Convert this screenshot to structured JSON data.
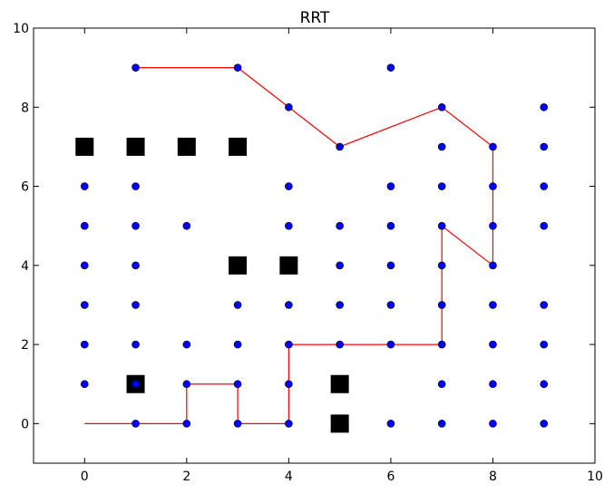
{
  "chart_data": {
    "type": "scatter",
    "title": "RRT",
    "xlabel": "",
    "ylabel": "",
    "xlim": [
      -1,
      10
    ],
    "ylim": [
      -1,
      10
    ],
    "xticks": [
      0,
      2,
      4,
      6,
      8,
      10
    ],
    "yticks": [
      0,
      2,
      4,
      6,
      8,
      10
    ],
    "xtick_labels": [
      "0",
      "2",
      "4",
      "6",
      "8",
      "10"
    ],
    "ytick_labels": [
      "0",
      "2",
      "4",
      "6",
      "8",
      "10"
    ],
    "grid": false,
    "colors": {
      "nodes": "#0000ff",
      "path": "#ff0000",
      "obstacles": "#000000"
    },
    "obstacles": [
      [
        0,
        7
      ],
      [
        1,
        7
      ],
      [
        2,
        7
      ],
      [
        3,
        7
      ],
      [
        3,
        4
      ],
      [
        4,
        4
      ],
      [
        1,
        1
      ],
      [
        5,
        1
      ],
      [
        5,
        0
      ]
    ],
    "nodes": [
      [
        1,
        9
      ],
      [
        3,
        9
      ],
      [
        6,
        9
      ],
      [
        4,
        8
      ],
      [
        7,
        8
      ],
      [
        9,
        8
      ],
      [
        5,
        7
      ],
      [
        7,
        7
      ],
      [
        8,
        7
      ],
      [
        9,
        7
      ],
      [
        0,
        6
      ],
      [
        1,
        6
      ],
      [
        4,
        6
      ],
      [
        6,
        6
      ],
      [
        7,
        6
      ],
      [
        8,
        6
      ],
      [
        9,
        6
      ],
      [
        0,
        5
      ],
      [
        1,
        5
      ],
      [
        2,
        5
      ],
      [
        4,
        5
      ],
      [
        5,
        5
      ],
      [
        6,
        5
      ],
      [
        7,
        5
      ],
      [
        8,
        5
      ],
      [
        9,
        5
      ],
      [
        0,
        4
      ],
      [
        1,
        4
      ],
      [
        5,
        4
      ],
      [
        6,
        4
      ],
      [
        7,
        4
      ],
      [
        8,
        4
      ],
      [
        0,
        3
      ],
      [
        1,
        3
      ],
      [
        3,
        3
      ],
      [
        4,
        3
      ],
      [
        5,
        3
      ],
      [
        6,
        3
      ],
      [
        7,
        3
      ],
      [
        8,
        3
      ],
      [
        9,
        3
      ],
      [
        0,
        2
      ],
      [
        1,
        2
      ],
      [
        2,
        2
      ],
      [
        3,
        2
      ],
      [
        4,
        2
      ],
      [
        5,
        2
      ],
      [
        6,
        2
      ],
      [
        7,
        2
      ],
      [
        8,
        2
      ],
      [
        9,
        2
      ],
      [
        0,
        1
      ],
      [
        1,
        1
      ],
      [
        2,
        1
      ],
      [
        3,
        1
      ],
      [
        4,
        1
      ],
      [
        7,
        1
      ],
      [
        8,
        1
      ],
      [
        9,
        1
      ],
      [
        1,
        0
      ],
      [
        2,
        0
      ],
      [
        3,
        0
      ],
      [
        4,
        0
      ],
      [
        6,
        0
      ],
      [
        7,
        0
      ],
      [
        8,
        0
      ],
      [
        9,
        0
      ]
    ],
    "path": [
      [
        0,
        0
      ],
      [
        2,
        0
      ],
      [
        2,
        1
      ],
      [
        3,
        1
      ],
      [
        3,
        0
      ],
      [
        4,
        0
      ],
      [
        4,
        2
      ],
      [
        7,
        2
      ],
      [
        7,
        5
      ],
      [
        8,
        4
      ],
      [
        8,
        7
      ],
      [
        7,
        8
      ],
      [
        5,
        7
      ],
      [
        4,
        8
      ],
      [
        3,
        9
      ],
      [
        1,
        9
      ]
    ]
  }
}
